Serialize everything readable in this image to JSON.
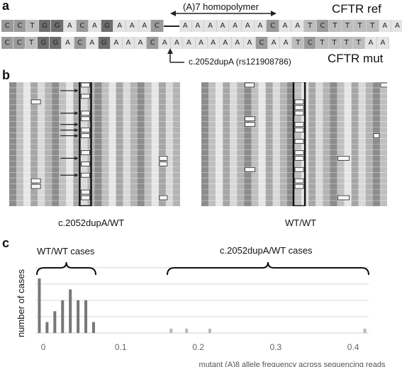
{
  "panel_a": {
    "label": "a",
    "homopolymer_label": "(A)7 homopolymer",
    "ref_label": "CFTR ref",
    "mut_label": "CFTR mut",
    "mutation_label": "c.2052dupA (rs121908786)",
    "ref_seq_left": [
      "C",
      "C",
      "T",
      "G",
      "G",
      "A",
      "C",
      "A",
      "G",
      "A",
      "A",
      "A",
      "C"
    ],
    "ref_seq_right": [
      "A",
      "A",
      "A",
      "A",
      "A",
      "A",
      "A",
      "C",
      "A",
      "A",
      "T",
      "C",
      "T",
      "T",
      "T",
      "T",
      "A",
      "A"
    ],
    "mut_seq": [
      "C",
      "C",
      "T",
      "G",
      "G",
      "A",
      "C",
      "A",
      "G",
      "A",
      "A",
      "A",
      "C",
      "A",
      "A",
      "A",
      "A",
      "A",
      "A",
      "A",
      "A",
      "C",
      "A",
      "A",
      "T",
      "C",
      "T",
      "T",
      "T",
      "T",
      "A",
      "A"
    ]
  },
  "panel_b": {
    "label": "b",
    "left_caption": "c.2052dupA/WT",
    "right_caption": "WT/WT"
  },
  "panel_c": {
    "label": "c",
    "bracket_left": "WT/WT cases",
    "bracket_right": "c.2052dupA/WT cases",
    "colors": {
      "bar": "#777777",
      "bar_light": "#b8b8b8"
    }
  },
  "chart_data": {
    "type": "bar",
    "xlabel": "mutant (A)8 allele frequency across sequencing reads",
    "ylabel": "number of cases",
    "xlim": [
      -0.01,
      0.42
    ],
    "ylim": [
      0,
      6.5
    ],
    "xticks": [
      "0",
      "0.1",
      "0.2",
      "0.3",
      "0.4"
    ],
    "grid": true,
    "x": [
      -0.005,
      0.005,
      0.015,
      0.025,
      0.035,
      0.045,
      0.055,
      0.065,
      0.165,
      0.185,
      0.215,
      0.415
    ],
    "values": [
      5,
      1,
      2,
      3,
      4,
      3,
      3,
      1,
      0.4,
      0.4,
      0.4,
      0.4
    ]
  }
}
